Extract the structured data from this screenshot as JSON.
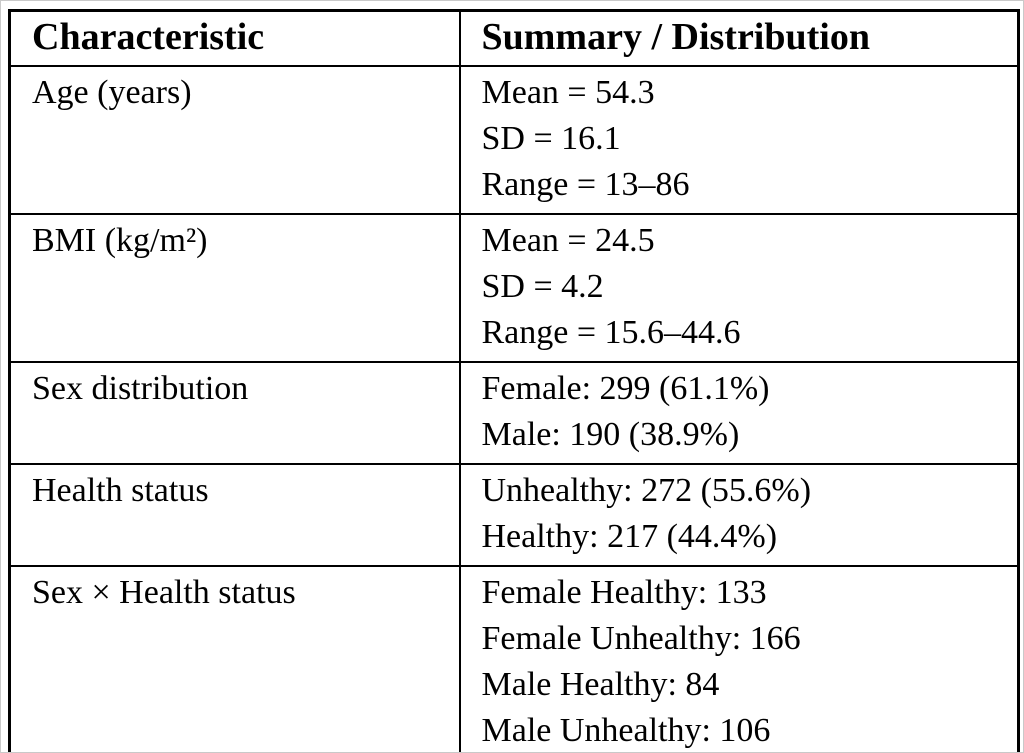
{
  "page": {
    "background_color": "#ffffff",
    "border_color": "#000000",
    "edge_artifact_color": "#c9c9c9"
  },
  "table": {
    "columns": {
      "characteristic": "Characteristic",
      "summary": "Summary / Distribution"
    },
    "rows": [
      {
        "characteristic": "Age (years)",
        "summary_lines": [
          "Mean = 54.3",
          "SD = 16.1",
          "Range = 13–86"
        ]
      },
      {
        "characteristic": "BMI (kg/m²)",
        "summary_lines": [
          "Mean = 24.5",
          "SD = 4.2",
          "Range = 15.6–44.6"
        ]
      },
      {
        "characteristic": "Sex distribution",
        "summary_lines": [
          "Female: 299 (61.1%)",
          "Male: 190 (38.9%)"
        ]
      },
      {
        "characteristic": "Health status",
        "summary_lines": [
          "Unhealthy: 272 (55.6%)",
          "Healthy: 217 (44.4%)"
        ]
      },
      {
        "characteristic": "Sex × Health status",
        "summary_lines": [
          "Female Healthy: 133",
          "Female Unhealthy: 166",
          "Male Healthy: 84",
          "Male Unhealthy: 106"
        ]
      }
    ]
  }
}
